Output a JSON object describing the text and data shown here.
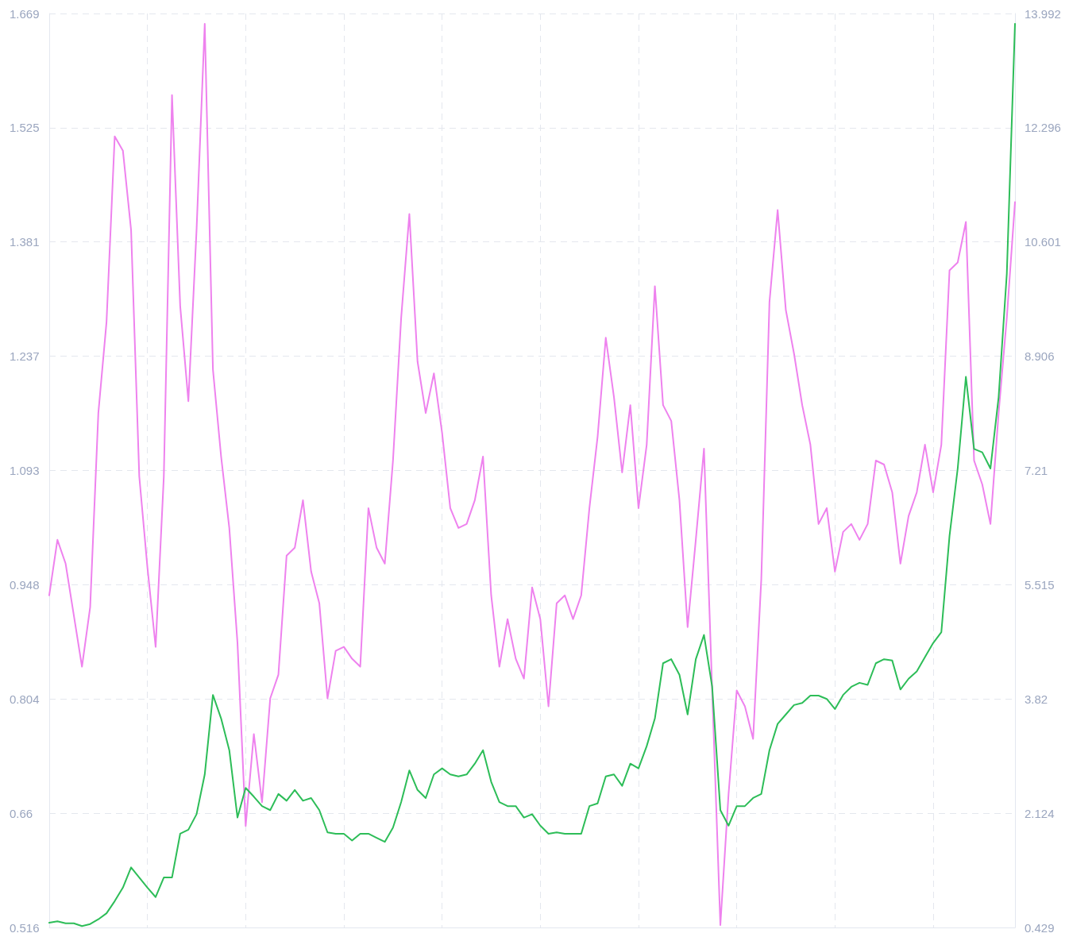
{
  "chart_data": {
    "type": "line",
    "categories": [
      null,
      null,
      null,
      null,
      null,
      null,
      null,
      null,
      null,
      null,
      null,
      null,
      null,
      null,
      null,
      null,
      null,
      null,
      null,
      null,
      null,
      null,
      null,
      null,
      null,
      null,
      null,
      null,
      null,
      null,
      null,
      null,
      null,
      null,
      null,
      null,
      null,
      null,
      null,
      null,
      null,
      null,
      null,
      null,
      null,
      null,
      null,
      null,
      null,
      null,
      null,
      null,
      null,
      null,
      null,
      null,
      null,
      null,
      null,
      null,
      null,
      null,
      null,
      null,
      null,
      null,
      null,
      null,
      null,
      null,
      null,
      null,
      null,
      null,
      null,
      null,
      null,
      null,
      null,
      null,
      null,
      null,
      null,
      null,
      null,
      null,
      null,
      null,
      null,
      null,
      null,
      null,
      null,
      null,
      null,
      null,
      null,
      null,
      null,
      null,
      null,
      null,
      null,
      null,
      null,
      null,
      null,
      null,
      null,
      null,
      null,
      null,
      null,
      null,
      null,
      null,
      null,
      null,
      null
    ],
    "series": [
      {
        "color": "#ee82ee",
        "values": [
          0.935,
          1.005,
          0.975,
          0.91,
          0.845,
          0.92,
          1.165,
          1.28,
          1.514,
          1.496,
          1.396,
          1.085,
          0.97,
          0.87,
          1.085,
          1.566,
          1.3,
          1.18,
          1.396,
          1.656,
          1.22,
          1.11,
          1.02,
          0.875,
          0.644,
          0.76,
          0.674,
          0.805,
          0.835,
          0.985,
          0.995,
          1.055,
          0.965,
          0.925,
          0.805,
          0.865,
          0.87,
          0.855,
          0.845,
          1.045,
          0.995,
          0.975,
          1.105,
          1.285,
          1.416,
          1.23,
          1.165,
          1.215,
          1.14,
          1.045,
          1.02,
          1.025,
          1.055,
          1.11,
          0.935,
          0.845,
          0.905,
          0.855,
          0.83,
          0.945,
          0.905,
          0.795,
          0.925,
          0.935,
          0.905,
          0.935,
          1.045,
          1.135,
          1.26,
          1.185,
          1.09,
          1.175,
          1.045,
          1.125,
          1.325,
          1.175,
          1.155,
          1.055,
          0.895,
          1.005,
          1.12,
          0.815,
          0.519,
          0.684,
          0.815,
          0.795,
          0.754,
          0.955,
          1.305,
          1.421,
          1.295,
          1.24,
          1.175,
          1.125,
          1.025,
          1.045,
          0.965,
          1.015,
          1.025,
          1.005,
          1.025,
          1.105,
          1.1,
          1.065,
          0.975,
          1.035,
          1.065,
          1.125,
          1.065,
          1.125,
          1.345,
          1.355,
          1.406,
          1.105,
          1.075,
          1.025,
          1.165,
          1.285,
          1.431
        ]
      },
      {
        "color": "#2dbd58",
        "axis": "y2",
        "values": [
          0.5,
          0.52,
          0.49,
          0.49,
          0.45,
          0.48,
          0.55,
          0.64,
          0.82,
          1.02,
          1.32,
          1.17,
          1.02,
          0.88,
          1.17,
          1.17,
          1.82,
          1.88,
          2.11,
          2.7,
          3.88,
          3.53,
          3.06,
          2.06,
          2.5,
          2.37,
          2.23,
          2.17,
          2.41,
          2.31,
          2.47,
          2.31,
          2.35,
          2.17,
          1.84,
          1.82,
          1.82,
          1.72,
          1.82,
          1.82,
          1.76,
          1.7,
          1.91,
          2.29,
          2.76,
          2.47,
          2.35,
          2.7,
          2.79,
          2.7,
          2.67,
          2.7,
          2.86,
          3.06,
          2.59,
          2.29,
          2.23,
          2.23,
          2.06,
          2.11,
          1.94,
          1.82,
          1.84,
          1.82,
          1.82,
          1.82,
          2.23,
          2.27,
          2.67,
          2.7,
          2.53,
          2.86,
          2.79,
          3.12,
          3.53,
          4.35,
          4.41,
          4.18,
          3.59,
          4.41,
          4.77,
          4.0,
          2.17,
          1.94,
          2.23,
          2.23,
          2.35,
          2.41,
          3.06,
          3.45,
          3.59,
          3.73,
          3.76,
          3.87,
          3.87,
          3.82,
          3.67,
          3.88,
          4.0,
          4.06,
          4.03,
          4.35,
          4.41,
          4.39,
          3.96,
          4.12,
          4.23,
          4.44,
          4.65,
          4.81,
          6.24,
          7.24,
          8.6,
          7.53,
          7.48,
          7.24,
          8.3,
          10.13,
          13.84
        ]
      }
    ],
    "ylim": [
      0.516,
      1.669
    ],
    "yticks": [
      0.516,
      0.66,
      0.804,
      0.948,
      1.093,
      1.237,
      1.381,
      1.525,
      1.669
    ],
    "y2lim": [
      0.429,
      13.992
    ],
    "y2ticks": [
      0.429,
      2.124,
      3.82,
      5.515,
      7.21,
      8.906,
      10.601,
      12.296,
      13.992
    ],
    "grid": true
  }
}
